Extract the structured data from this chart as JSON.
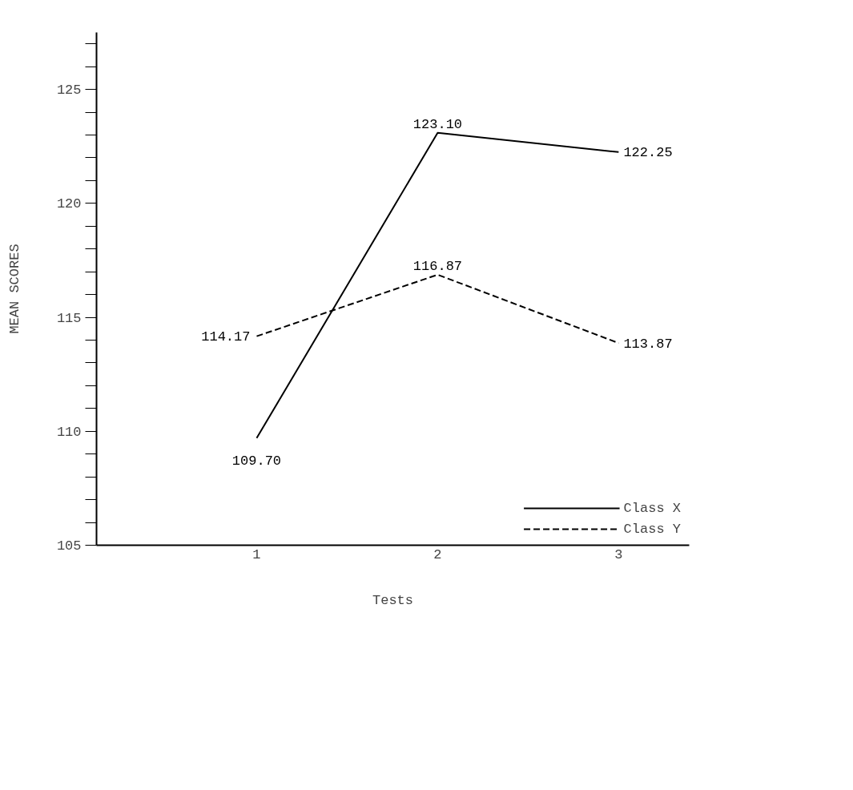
{
  "chart_data": {
    "type": "line",
    "xlabel": "Tests",
    "ylabel": "MEAN SCORES",
    "categories": [
      "1",
      "2",
      "3"
    ],
    "series": [
      {
        "name": "Class X",
        "color": "#000000",
        "line_style": "solid",
        "values": [
          109.7,
          123.1,
          122.25
        ],
        "value_labels": [
          "109.70",
          "123.10",
          "122.25"
        ]
      },
      {
        "name": "Class Y",
        "color": "#000000",
        "line_style": "dashed",
        "values": [
          114.17,
          116.87,
          113.87
        ],
        "value_labels": [
          "114.17",
          "116.87",
          "113.87"
        ]
      }
    ],
    "ylim": [
      105,
      127.5
    ],
    "yticks": [
      105,
      {
        "value": 106,
        "label": null
      },
      {
        "value": 107,
        "label": null
      },
      {
        "value": 108,
        "label": null
      },
      {
        "value": 109,
        "label": null
      },
      110,
      {
        "value": 111,
        "label": null
      },
      {
        "value": 112,
        "label": null
      },
      {
        "value": 113,
        "label": null
      },
      {
        "value": 114,
        "label": null
      },
      115,
      {
        "value": 116,
        "label": null
      },
      {
        "value": 117,
        "label": null
      },
      {
        "value": 118,
        "label": null
      },
      {
        "value": 119,
        "label": null
      },
      120,
      {
        "value": 121,
        "label": null
      },
      {
        "value": 122,
        "label": null
      },
      {
        "value": 123,
        "label": null
      },
      {
        "value": 124,
        "label": null
      },
      125,
      {
        "value": 126,
        "label": null
      },
      {
        "value": 127,
        "label": null
      }
    ],
    "grid": false,
    "legend": "bottom right",
    "marker": "none"
  }
}
